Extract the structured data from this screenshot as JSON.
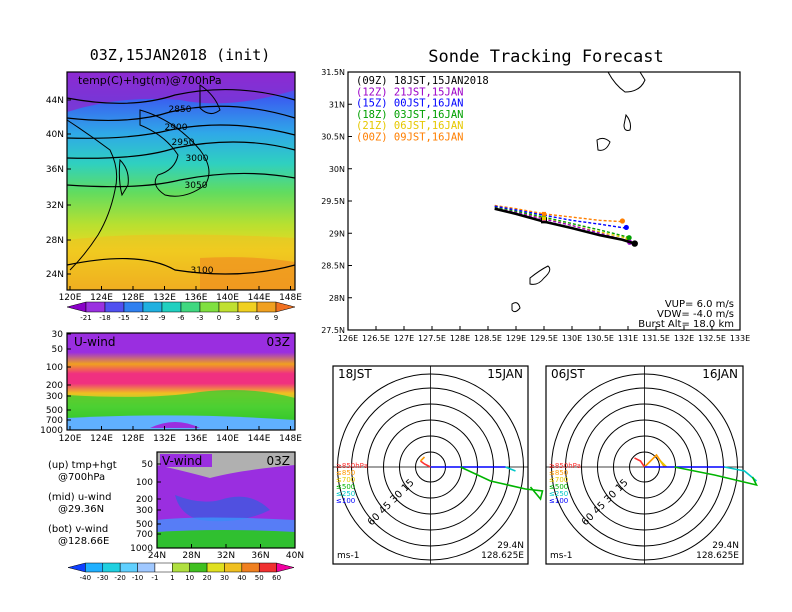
{
  "left_title": "03Z,15JAN2018 (init)",
  "map_panel": {
    "label": "temp(C)+hgt(m)@700hPa",
    "lat_ticks": [
      "44N",
      "40N",
      "36N",
      "32N",
      "28N",
      "24N"
    ],
    "lon_ticks": [
      "120E",
      "124E",
      "128E",
      "132E",
      "136E",
      "140E",
      "144E",
      "148E"
    ],
    "contour_labels": [
      "2850",
      "2900",
      "2950",
      "3000",
      "3050",
      "3100"
    ]
  },
  "temp_colorbar": [
    "-21",
    "-18",
    "-15",
    "-12",
    "-9",
    "-6",
    "-3",
    "0",
    "3",
    "6",
    "9"
  ],
  "uwind_panel": {
    "label": "U-wind",
    "time": "03Z",
    "pressure_ticks": [
      "30",
      "50",
      "100",
      "200",
      "300",
      "500",
      "700",
      "1000"
    ],
    "lon_ticks": [
      "120E",
      "124E",
      "128E",
      "132E",
      "136E",
      "140E",
      "144E",
      "148E"
    ]
  },
  "vwind_panel": {
    "label": "V-wind",
    "time": "03Z",
    "pressure_ticks": [
      "50",
      "100",
      "200",
      "300",
      "500",
      "700",
      "1000"
    ],
    "lat_ticks": [
      "24N",
      "28N",
      "32N",
      "36N",
      "40N"
    ]
  },
  "notes": {
    "up_a": "(up) tmp+hgt",
    "up_b": "@700hPa",
    "mid_a": "(mid) u-wind",
    "mid_b": "@29.36N",
    "bot_a": "(bot) v-wind",
    "bot_b": "@128.66E"
  },
  "wind_colorbar": [
    "-40",
    "-30",
    "-20",
    "-10",
    "-1",
    "1",
    "10",
    "20",
    "30",
    "40",
    "50",
    "60"
  ],
  "right_title": "Sonde Tracking Forecast",
  "tracking_legend": [
    {
      "text": "(09Z)  18JST,15JAN2018",
      "color": "#000000"
    },
    {
      "text": "(12Z)  21JST,15JAN",
      "color": "#9b00c8"
    },
    {
      "text": "(15Z)  00JST,16JAN",
      "color": "#0000ff"
    },
    {
      "text": "(18Z)  03JST,16JAN",
      "color": "#00a000"
    },
    {
      "text": "(21Z)  06JST,16JAN",
      "color": "#e6c800"
    },
    {
      "text": "(00Z)  09JST,16JAN",
      "color": "#ff7f00"
    }
  ],
  "tracking_info": [
    "VUP= 6.0 m/s",
    "VDW= -4.0 m/s",
    "Burst Alt= 18.0 km"
  ],
  "chart_data": {
    "type": "line",
    "title": "Sonde Tracking Forecast",
    "xlim": [
      126,
      133
    ],
    "ylim": [
      27.5,
      31.5
    ],
    "x_ticks": [
      "126E",
      "126.5E",
      "127E",
      "127.5E",
      "128E",
      "128.5E",
      "129E",
      "129.5E",
      "130E",
      "130.5E",
      "131E",
      "131.5E",
      "132E",
      "132.5E",
      "133E"
    ],
    "y_ticks": [
      "27.5N",
      "28N",
      "28.5N",
      "29N",
      "29.5N",
      "30N",
      "30.5N",
      "31N",
      "31.5N"
    ],
    "series": [
      {
        "name": "(09Z)  18JST,15JAN2018",
        "color": "#000000",
        "points": [
          [
            128.62,
            29.38
          ],
          [
            129.0,
            29.3
          ],
          [
            129.5,
            29.18
          ],
          [
            130.0,
            29.08
          ],
          [
            130.5,
            28.97
          ],
          [
            130.9,
            28.9
          ],
          [
            131.12,
            28.84
          ]
        ],
        "end_marker": [
          131.12,
          28.84
        ],
        "mid_marker": [
          129.5,
          29.2
        ]
      },
      {
        "name": "(12Z)  21JST,15JAN",
        "color": "#9b00c8",
        "points": [
          [
            128.62,
            29.39
          ],
          [
            129.0,
            29.32
          ],
          [
            129.5,
            29.22
          ],
          [
            130.0,
            29.12
          ],
          [
            130.5,
            29.0
          ],
          [
            131.0,
            28.88
          ]
        ],
        "end_marker": [
          131.03,
          28.86
        ]
      },
      {
        "name": "(15Z)  00JST,16JAN",
        "color": "#0000ff",
        "points": [
          [
            128.62,
            29.42
          ],
          [
            129.0,
            29.36
          ],
          [
            129.5,
            29.28
          ],
          [
            130.0,
            29.2
          ],
          [
            130.5,
            29.14
          ],
          [
            130.95,
            29.08
          ]
        ],
        "end_marker": [
          130.97,
          29.09
        ]
      },
      {
        "name": "(18Z)  03JST,16JAN",
        "color": "#00a000",
        "points": [
          [
            128.62,
            29.41
          ],
          [
            129.0,
            29.34
          ],
          [
            129.5,
            29.25
          ],
          [
            130.0,
            29.15
          ],
          [
            130.5,
            29.05
          ],
          [
            131.0,
            28.94
          ]
        ],
        "end_marker": [
          131.02,
          28.93
        ]
      },
      {
        "name": "(21Z)  06JST,16JAN",
        "color": "#e6c800",
        "points": [
          [
            128.62,
            29.4
          ],
          [
            129.0,
            29.33
          ],
          [
            129.5,
            29.23
          ],
          [
            130.0,
            29.12
          ],
          [
            130.5,
            29.02
          ],
          [
            131.0,
            28.92
          ]
        ],
        "end_marker": [
          131.0,
          28.92
        ]
      },
      {
        "name": "(00Z)  09JST,16JAN",
        "color": "#ff7f00",
        "points": [
          [
            128.62,
            29.43
          ],
          [
            129.0,
            29.38
          ],
          [
            129.5,
            29.3
          ],
          [
            130.0,
            29.25
          ],
          [
            130.5,
            29.2
          ],
          [
            130.9,
            29.18
          ]
        ],
        "end_marker": [
          130.9,
          29.19
        ]
      }
    ]
  },
  "hodographs": [
    {
      "time": "18JST",
      "date": "15JAN",
      "rings": [
        "15",
        "30",
        "45",
        "60"
      ],
      "pressure_levels": [
        {
          "text": "≥850hPa",
          "color": "#ff3030"
        },
        {
          "text": "≤850",
          "color": "#ff9900"
        },
        {
          "text": "≤700",
          "color": "#e6c800"
        },
        {
          "text": "≤500",
          "color": "#00b400"
        },
        {
          "text": "≤250",
          "color": "#00c8c8"
        },
        {
          "text": "≤100",
          "color": "#0000ff"
        }
      ],
      "lat": "29.4N",
      "lon": "128.625E",
      "unit": "ms-1"
    },
    {
      "time": "06JST",
      "date": "16JAN",
      "rings": [
        "15",
        "30",
        "45",
        "60"
      ],
      "pressure_levels": [
        {
          "text": "≥850hPa",
          "color": "#ff3030"
        },
        {
          "text": "≤850",
          "color": "#ff9900"
        },
        {
          "text": "≤700",
          "color": "#e6c800"
        },
        {
          "text": "≤500",
          "color": "#00b400"
        },
        {
          "text": "≤250",
          "color": "#00c8c8"
        },
        {
          "text": "≤100",
          "color": "#0000ff"
        }
      ],
      "lat": "29.4N",
      "lon": "128.625E",
      "unit": "ms-1"
    }
  ]
}
